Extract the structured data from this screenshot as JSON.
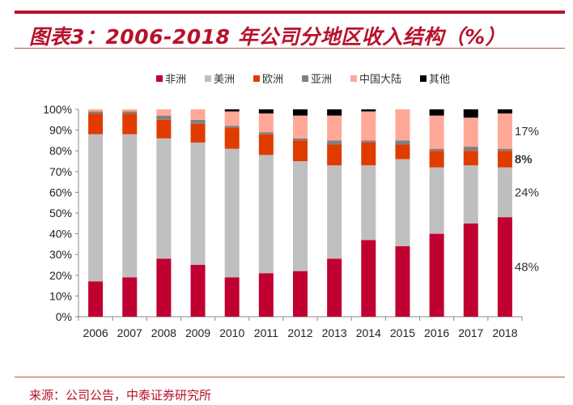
{
  "title": "图表3：2006-2018 年公司分地区收入结构（%）",
  "source": "来源：公司公告，中泰证券研究所",
  "chart_data": {
    "type": "bar",
    "stacked": true,
    "categories": [
      "2006",
      "2007",
      "2008",
      "2009",
      "2010",
      "2011",
      "2012",
      "2013",
      "2014",
      "2015",
      "2016",
      "2017",
      "2018"
    ],
    "ylim": [
      0,
      100
    ],
    "yticks": [
      "0%",
      "10%",
      "20%",
      "30%",
      "40%",
      "50%",
      "60%",
      "70%",
      "80%",
      "90%",
      "100%"
    ],
    "legend_position": "top",
    "grid": false,
    "series": [
      {
        "name": "非洲",
        "color": "#c00030",
        "values": [
          17,
          19,
          28,
          25,
          19,
          21,
          22,
          28,
          37,
          34,
          40,
          45,
          48
        ]
      },
      {
        "name": "美洲",
        "color": "#bfbfbf",
        "values": [
          71,
          69,
          58,
          59,
          62,
          57,
          53,
          45,
          36,
          42,
          32,
          28,
          24
        ]
      },
      {
        "name": "欧洲",
        "color": "#e03c00",
        "values": [
          10,
          10,
          9,
          9,
          10,
          10,
          10,
          10,
          11,
          7,
          8,
          7,
          8
        ]
      },
      {
        "name": "亚洲",
        "color": "#808080",
        "values": [
          1,
          1,
          2,
          2,
          1,
          1,
          1,
          2,
          1,
          2,
          1,
          2,
          1
        ]
      },
      {
        "name": "中国大陆",
        "color": "#ffa898",
        "values": [
          1,
          1,
          3,
          5,
          7,
          9,
          11,
          12,
          14,
          15,
          16,
          14,
          17
        ]
      },
      {
        "name": "其他",
        "color": "#000000",
        "values": [
          0,
          0,
          0,
          0,
          1,
          2,
          3,
          3,
          1,
          0,
          3,
          4,
          2
        ]
      }
    ],
    "annotations": [
      {
        "category": "2018",
        "series": "中国大陆",
        "text": "17%"
      },
      {
        "category": "2018",
        "series": "欧洲",
        "text": "8%"
      },
      {
        "category": "2018",
        "series": "美洲",
        "text": "24%"
      },
      {
        "category": "2018",
        "series": "非洲",
        "text": "48%"
      }
    ]
  }
}
